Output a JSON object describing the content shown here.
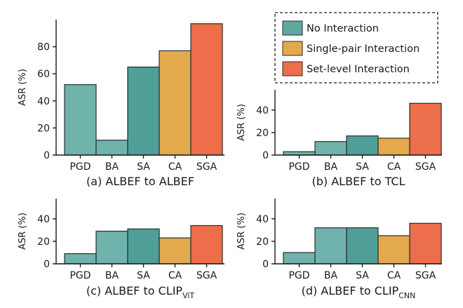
{
  "colors": {
    "no_interaction_light": "#6fb3ac",
    "no_interaction_dark": "#4f9f98",
    "single_pair": "#e3a94c",
    "set_level": "#ec6e4a"
  },
  "legend": {
    "items": [
      {
        "label": "No Interaction",
        "color": "#5fa9a2"
      },
      {
        "label": "Single-pair Interaction",
        "color": "#e3a94c"
      },
      {
        "label": "Set-level Interaction",
        "color": "#ec6e4a"
      }
    ]
  },
  "chart_data": [
    {
      "type": "bar",
      "caption": "(a) ALBEF to ALBEF",
      "caption_main": "(a) ALBEF to ",
      "caption_tail": "ALBEF",
      "caption_sub": "",
      "ylabel": "ASR (%)",
      "ylim": [
        0,
        100
      ],
      "yticks": [
        0,
        20,
        40,
        60,
        80
      ],
      "categories": [
        "PGD",
        "BA",
        "SA",
        "CA",
        "SGA"
      ],
      "values": [
        52,
        11,
        65,
        77,
        97
      ],
      "bar_colors": [
        "#6fb3ac",
        "#6fb3ac",
        "#4f9f98",
        "#e3a94c",
        "#ec6e4a"
      ]
    },
    {
      "type": "bar",
      "caption": "(b) ALBEF to TCL",
      "caption_main": "(b) ALBEF to ",
      "caption_tail": "TCL",
      "caption_sub": "",
      "ylabel": "ASR (%)",
      "ylim": [
        0,
        58
      ],
      "yticks": [
        0,
        20,
        40
      ],
      "categories": [
        "PGD",
        "BA",
        "SA",
        "CA",
        "SGA"
      ],
      "values": [
        3,
        12,
        17,
        15,
        46
      ],
      "bar_colors": [
        "#6fb3ac",
        "#6fb3ac",
        "#4f9f98",
        "#e3a94c",
        "#ec6e4a"
      ]
    },
    {
      "type": "bar",
      "caption": "(c) ALBEF to CLIP ViT",
      "caption_main": "(c) ALBEF to ",
      "caption_tail": "CLIP",
      "caption_sub": "ViT",
      "ylabel": "ASR (%)",
      "ylim": [
        0,
        58
      ],
      "yticks": [
        0,
        20,
        40
      ],
      "categories": [
        "PGD",
        "BA",
        "SA",
        "CA",
        "SGA"
      ],
      "values": [
        9,
        29,
        31,
        23,
        34
      ],
      "bar_colors": [
        "#6fb3ac",
        "#6fb3ac",
        "#4f9f98",
        "#e3a94c",
        "#ec6e4a"
      ]
    },
    {
      "type": "bar",
      "caption": "(d) ALBEF to CLIP CNN",
      "caption_main": "(d) ALBEF to ",
      "caption_tail": "CLIP",
      "caption_sub": "CNN",
      "ylabel": "ASR (%)",
      "ylim": [
        0,
        58
      ],
      "yticks": [
        0,
        20,
        40
      ],
      "categories": [
        "PGD",
        "BA",
        "SA",
        "CA",
        "SGA"
      ],
      "values": [
        10,
        32,
        32,
        25,
        36
      ],
      "bar_colors": [
        "#6fb3ac",
        "#6fb3ac",
        "#4f9f98",
        "#e3a94c",
        "#ec6e4a"
      ]
    }
  ]
}
